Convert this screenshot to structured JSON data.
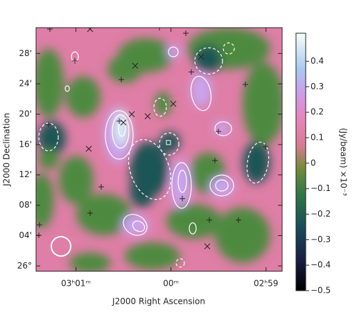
{
  "chart_data": {
    "type": "heatmap",
    "xlabel": "J2000 Right Ascension",
    "ylabel": "J2000 Declination",
    "xlim": [
      1.42,
      -1.17
    ],
    "xticks": [
      {
        "value": 1,
        "label": "03ʰ01ᵐ"
      },
      {
        "value": 0,
        "label": "00ᵐ"
      },
      {
        "value": -1,
        "label": "02ʰ59"
      }
    ],
    "ylim": [
      -0.7,
      31.4
    ],
    "yticks": [
      {
        "value": 28,
        "label": "28'"
      },
      {
        "value": 24,
        "label": "24'"
      },
      {
        "value": 20,
        "label": "20'"
      },
      {
        "value": 16,
        "label": "16'"
      },
      {
        "value": 12,
        "label": "12'"
      },
      {
        "value": 8,
        "label": "08'"
      },
      {
        "value": 4,
        "label": "04'"
      },
      {
        "value": 0,
        "label": "26°"
      }
    ],
    "colorbar": {
      "label": "(Jy/beam) ×10⁻³",
      "lim": [
        -0.5,
        0.51
      ],
      "ticks": [
        0.4,
        0.3,
        0.2,
        0.1,
        0,
        {
          "value": -0.1,
          "label": "−0.1"
        },
        {
          "value": -0.2,
          "label": "−0.2"
        },
        {
          "value": -0.3,
          "label": "−0.3"
        },
        {
          "value": -0.4,
          "label": "−0.4"
        },
        {
          "value": -0.5,
          "label": "−0.5"
        }
      ]
    }
  }
}
